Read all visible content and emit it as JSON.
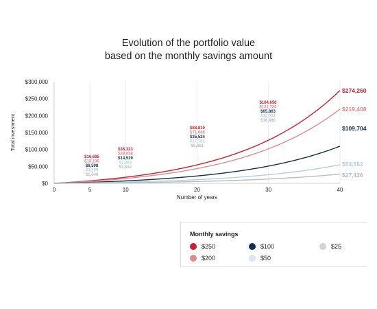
{
  "title_line1": "Evolution of the portfolio value",
  "title_line2": "based on the monthly savings amount",
  "chart_data": {
    "type": "line",
    "xlabel": "Number of years",
    "ylabel": "Total investment",
    "xlim": [
      0,
      40
    ],
    "ylim": [
      0,
      300000
    ],
    "x_ticks": [
      "0",
      "5",
      "10",
      "20",
      "30",
      "40"
    ],
    "x_tick_values": [
      0,
      5,
      10,
      20,
      30,
      40
    ],
    "y_ticks": [
      "$0",
      "$50,000",
      "$100,000",
      "$150,000",
      "$200,000",
      "$250,000",
      "$300,000"
    ],
    "y_tick_values": [
      0,
      50000,
      100000,
      150000,
      200000,
      250000,
      300000
    ],
    "grid": "vertical",
    "x": [
      0,
      5,
      10,
      20,
      30,
      40
    ],
    "series": [
      {
        "name": "$250",
        "color": "#c8202f",
        "values": [
          0,
          16695,
          36323,
          88810,
          164658,
          274260
        ],
        "labels": [
          "",
          "$16,695",
          "$36,323",
          "$88,810",
          "$164,658",
          "$274,260"
        ]
      },
      {
        "name": "$200",
        "color": "#e08a8f",
        "values": [
          0,
          13196,
          29058,
          71048,
          131726,
          219408
        ],
        "labels": [
          "",
          "$13,196",
          "$29,058",
          "$71,048",
          "$131,726",
          "$219,408"
        ]
      },
      {
        "name": "$100",
        "color": "#13304a",
        "values": [
          0,
          6598,
          14529,
          35524,
          65863,
          109704
        ],
        "labels": [
          "",
          "$6,598",
          "$14,529",
          "$35,524",
          "$65,863",
          "$109,704"
        ]
      },
      {
        "name": "$50",
        "color": "#b6cde2",
        "values": [
          0,
          3299,
          7265,
          17762,
          32932,
          54852
        ],
        "labels": [
          "",
          "$3,299",
          "$7,265",
          "$17,762",
          "$32,932",
          "$54,852"
        ]
      },
      {
        "name": "$25",
        "color": "#b9bcbf",
        "values": [
          0,
          1649,
          3632,
          8881,
          16466,
          27426
        ],
        "labels": [
          "",
          "$1,649",
          "$3,632",
          "$8,881",
          "$16,466",
          "$27,426"
        ]
      }
    ],
    "legend_placement": "bottom-right"
  },
  "legend": {
    "title": "Monthly savings",
    "items": [
      {
        "label": "$250",
        "color": "#c8202f"
      },
      {
        "label": "$100",
        "color": "#13304a"
      },
      {
        "label": "$25",
        "color": "#d3d3d3"
      },
      {
        "label": "$200",
        "color": "#e08a8f"
      },
      {
        "label": "$50",
        "color": "#d9e8f0"
      }
    ]
  }
}
